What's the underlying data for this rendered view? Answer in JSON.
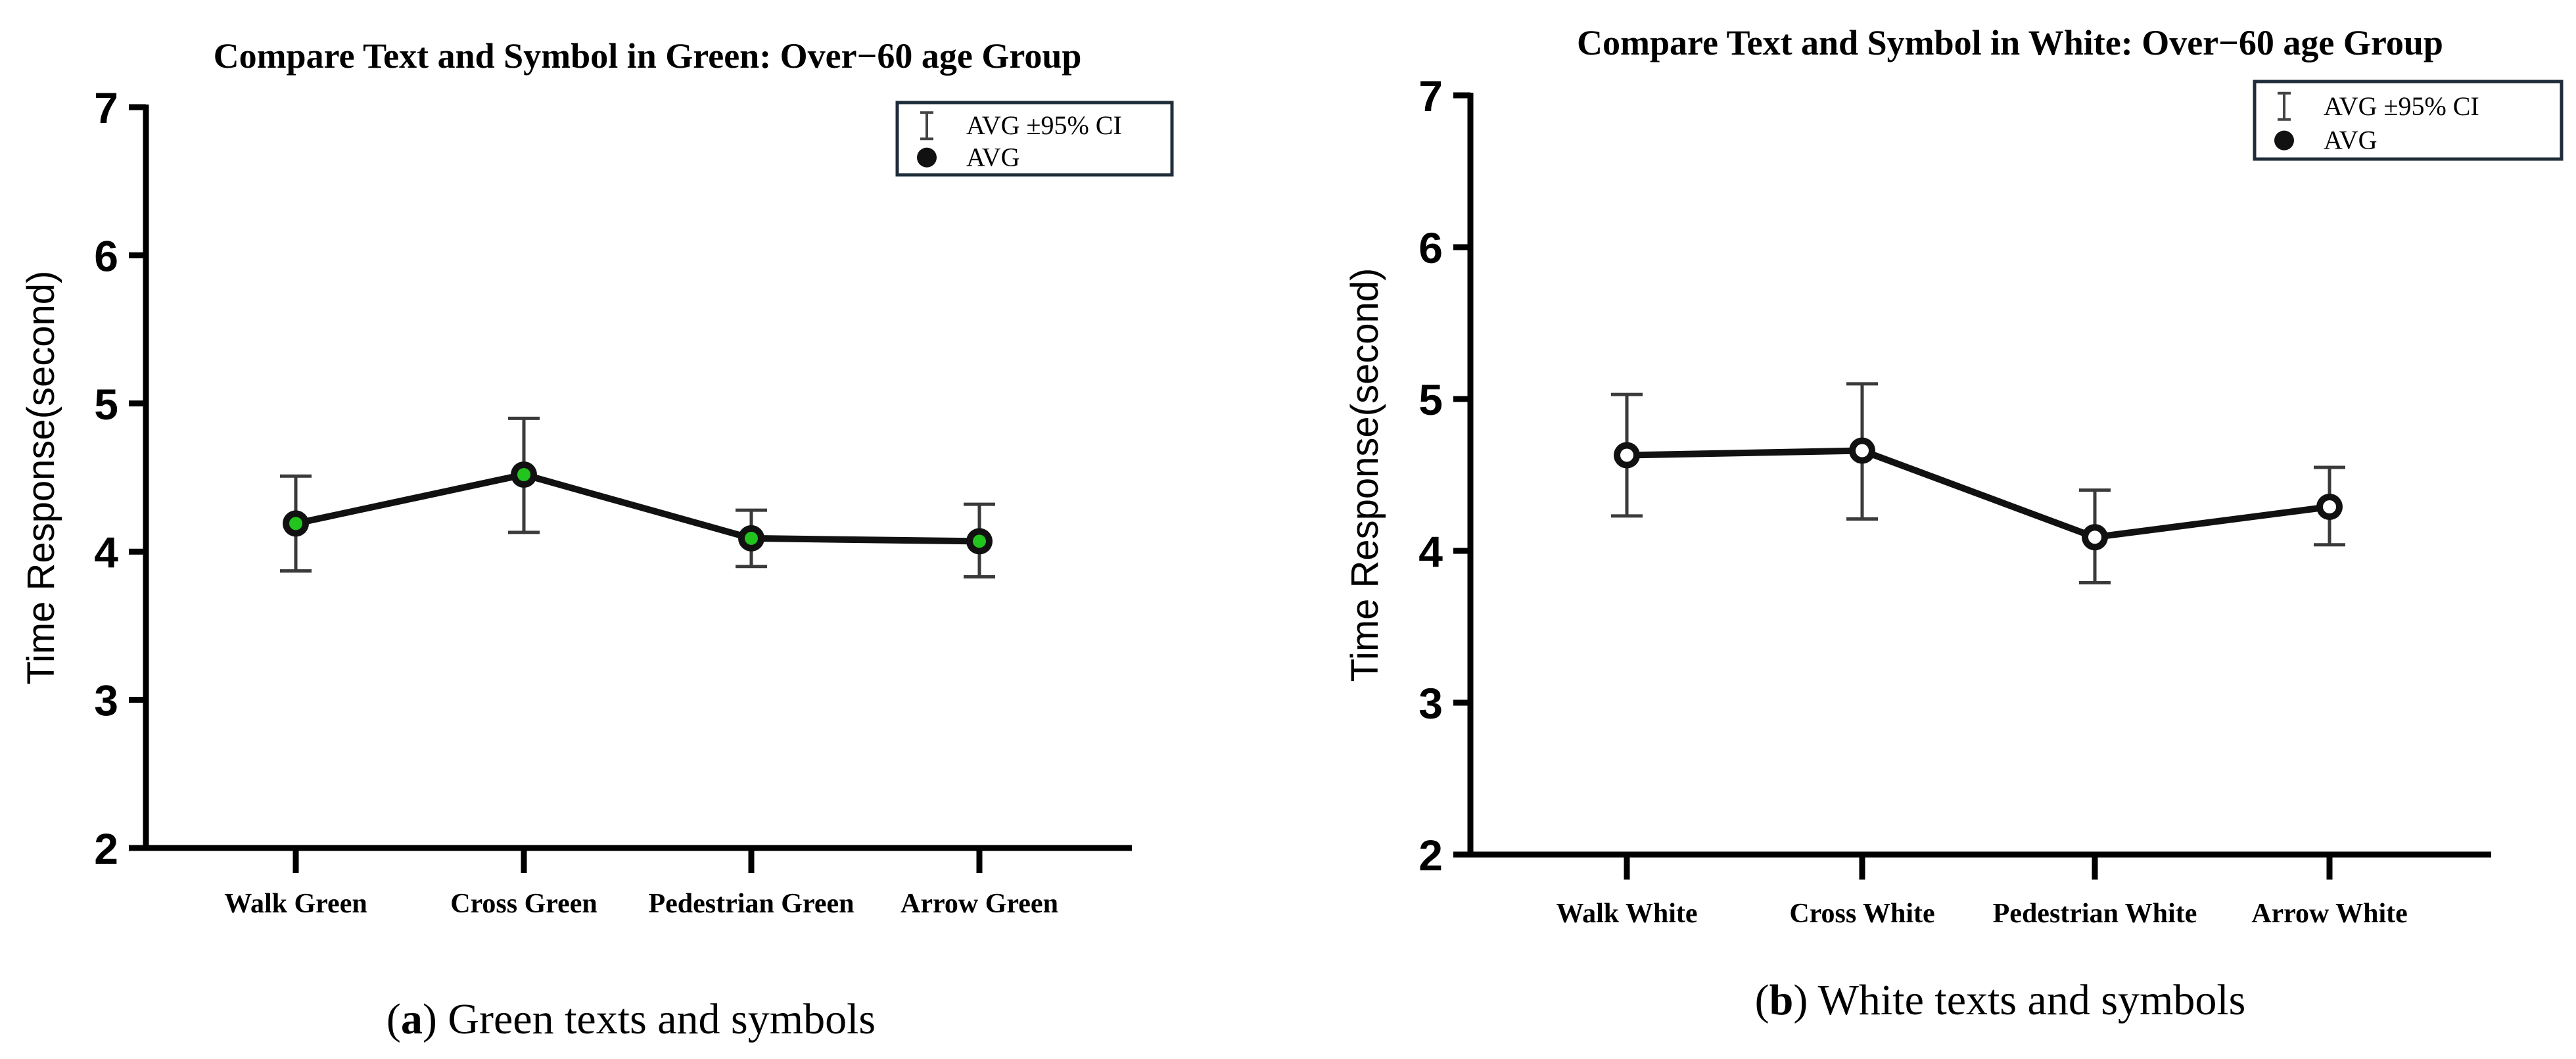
{
  "chart_data": [
    {
      "type": "line",
      "title": "Compare Text and Symbol in Green: Over−60 age Group",
      "ylabel": "Time Response(second)",
      "xlabel": "",
      "categories": [
        "Walk  Green",
        "Cross  Green",
        "Pedestrian  Green",
        "Arrow  Green"
      ],
      "ylim": [
        2,
        7
      ],
      "yticks": [
        "2",
        "3",
        "4",
        "5",
        "6",
        "7"
      ],
      "series": [
        {
          "name": "AVG",
          "values": [
            4.19,
            4.52,
            4.09,
            4.07
          ],
          "ci_low": [
            3.87,
            4.13,
            3.9,
            3.83
          ],
          "ci_high": [
            4.51,
            4.9,
            4.28,
            4.32
          ]
        }
      ],
      "legend": {
        "items": [
          "AVG ±95% CI",
          "AVG"
        ],
        "placement": "top-right"
      },
      "marker_color": "#22c41e",
      "grid": false,
      "caption": {
        "letter": "a",
        "text": "Green texts and symbols"
      }
    },
    {
      "type": "line",
      "title": "Compare Text and Symbol in White: Over−60 age Group",
      "ylabel": "Time Response(second)",
      "xlabel": "",
      "categories": [
        "Walk  White",
        "Cross  White",
        "Pedestrian  White",
        "Arrow  White"
      ],
      "ylim": [
        2,
        7
      ],
      "yticks": [
        "2",
        "3",
        "4",
        "5",
        "6",
        "7"
      ],
      "series": [
        {
          "name": "AVG",
          "values": [
            4.63,
            4.66,
            4.09,
            4.29
          ],
          "ci_low": [
            4.23,
            4.21,
            3.79,
            4.04
          ],
          "ci_high": [
            5.03,
            5.1,
            4.4,
            4.55
          ]
        }
      ],
      "legend": {
        "items": [
          "AVG ±95% CI",
          "AVG"
        ],
        "placement": "top-right"
      },
      "marker_color": "#ffffff",
      "grid": false,
      "caption": {
        "letter": "b",
        "text": "White texts and symbols"
      }
    }
  ]
}
